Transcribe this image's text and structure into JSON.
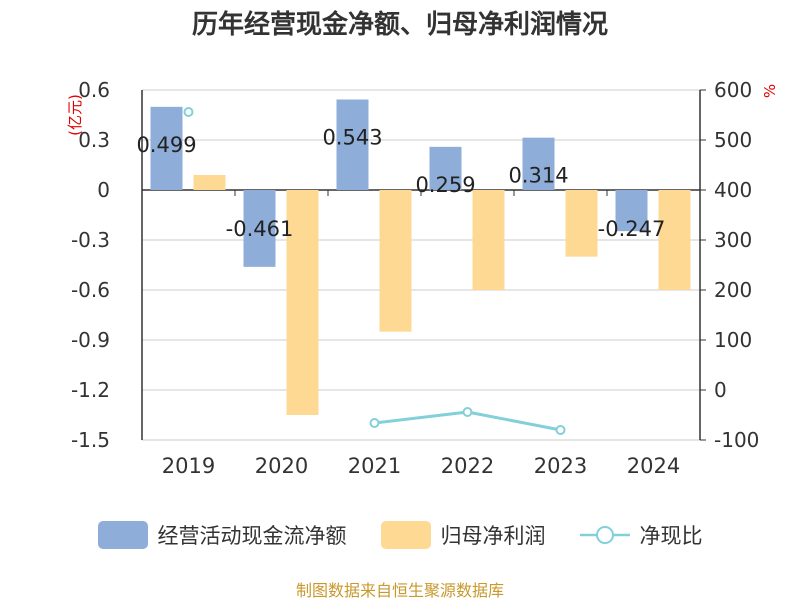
{
  "chart_data": {
    "type": "bar",
    "title": "历年经营现金净额、归母净利润情况",
    "categories": [
      "2019",
      "2020",
      "2021",
      "2022",
      "2023",
      "2024"
    ],
    "left_axis": {
      "unit": "(亿元)",
      "ylim": [
        -1.5,
        0.6
      ],
      "ticks": [
        "0.6",
        "0.3",
        "0",
        "-0.3",
        "-0.6",
        "-0.9",
        "-1.2",
        "-1.5"
      ]
    },
    "right_axis": {
      "unit": "%",
      "ylim": [
        -100,
        600
      ],
      "ticks": [
        "600",
        "500",
        "400",
        "300",
        "200",
        "100",
        "0",
        "-100"
      ]
    },
    "series": [
      {
        "name": "经营活动现金流净额",
        "type": "bar",
        "axis": "left",
        "color": "#8eadd9",
        "values": [
          0.499,
          -0.461,
          0.543,
          0.259,
          0.314,
          -0.247
        ],
        "labels": [
          "0.499",
          "-0.461",
          "0.543",
          "0.259",
          "0.314",
          "-0.247"
        ]
      },
      {
        "name": "归母净利润",
        "type": "bar",
        "axis": "left",
        "color": "#fed994",
        "values": [
          0.09,
          -1.35,
          -0.85,
          -0.6,
          -0.4,
          -0.6
        ]
      },
      {
        "name": "净现比",
        "type": "line",
        "axis": "right",
        "color": "#82d0d9",
        "values": [
          556,
          null,
          -66,
          -44,
          -80,
          null
        ]
      }
    ],
    "grid": true,
    "legend_position": "bottom"
  },
  "source": "制图数据来自恒生聚源数据库"
}
